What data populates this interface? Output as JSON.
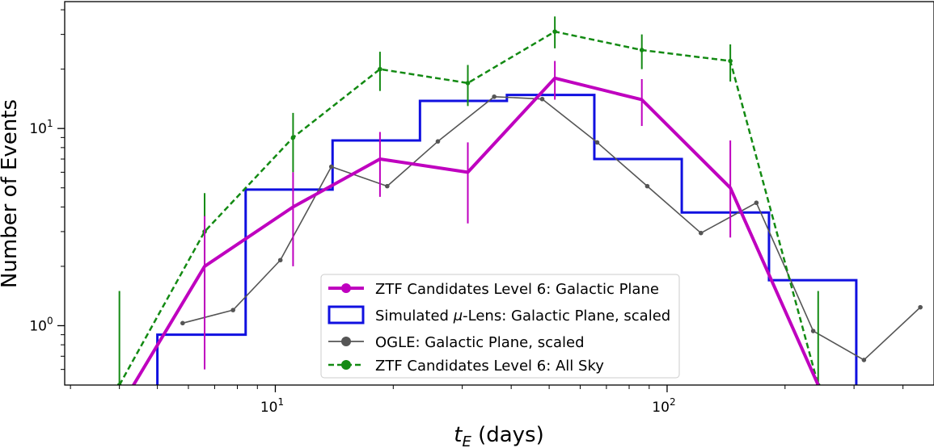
{
  "chart_data": {
    "type": "line",
    "xlabel": {
      "main": "t",
      "sub": "E",
      "rest": " (days)"
    },
    "ylabel": "Number of Events",
    "xscale": "log",
    "yscale": "log",
    "xlim": [
      2.9,
      480
    ],
    "ylim": [
      0.5,
      44
    ],
    "grid": false,
    "legend_position": "lower-center",
    "x_major_ticks": [
      {
        "value": 10,
        "base": "10",
        "exp": "1"
      },
      {
        "value": 100,
        "base": "10",
        "exp": "2"
      }
    ],
    "y_major_ticks": [
      {
        "value": 1,
        "base": "10",
        "exp": "0"
      },
      {
        "value": 10,
        "base": "10",
        "exp": "1"
      }
    ],
    "series": [
      {
        "name": "ZTF Candidates Level 6: Galactic Plane",
        "style": "line",
        "color": "#bf00bf",
        "x": [
          4.0,
          6.6,
          11.1,
          18.5,
          31.0,
          51.7,
          86.2,
          145.0,
          243.0
        ],
        "y": [
          0.38,
          2.0,
          4.0,
          7.0,
          6.0,
          18.0,
          14.0,
          5.0,
          0.5
        ],
        "err_low": [
          null,
          0.6,
          2.0,
          4.5,
          3.3,
          14.0,
          10.3,
          2.8,
          null
        ],
        "err_high": [
          null,
          3.6,
          6.0,
          9.6,
          8.5,
          22.0,
          17.8,
          8.7,
          null
        ]
      },
      {
        "name": "Simulated μ-Lens: Galactic Plane, scaled",
        "legend_prefix": "Simulated ",
        "legend_mu": "μ",
        "legend_suffix": "-Lens: Galactic Plane, scaled",
        "style": "step",
        "color": "#1010e0",
        "bin_edges": [
          5.0,
          8.4,
          14.0,
          23.4,
          39.0,
          65.2,
          109.0,
          182.0,
          304.0
        ],
        "values": [
          0.9,
          4.9,
          8.7,
          13.8,
          14.8,
          7.0,
          3.75,
          1.7
        ]
      },
      {
        "name": "OGLE: Galactic Plane, scaled",
        "style": "line",
        "color": "#555555",
        "x": [
          5.8,
          7.8,
          10.3,
          13.9,
          19.3,
          26.0,
          36.2,
          48.0,
          66.3,
          89.0,
          122.0,
          169.0,
          236.0,
          318.0,
          443.0
        ],
        "y": [
          1.03,
          1.2,
          2.15,
          6.4,
          5.1,
          8.6,
          14.5,
          14.1,
          8.5,
          5.1,
          2.95,
          4.2,
          0.94,
          0.67,
          1.24
        ]
      },
      {
        "name": "ZTF Candidates Level 6: All Sky",
        "style": "dashed",
        "color": "#138a13",
        "x": [
          4.0,
          6.6,
          11.1,
          18.5,
          31.0,
          51.7,
          86.2,
          145.0,
          243.0
        ],
        "y": [
          0.5,
          3.0,
          9.0,
          20.0,
          17.0,
          31.0,
          25.0,
          22.0,
          0.5
        ],
        "err_low": [
          null,
          1.2,
          6.0,
          15.5,
          13.0,
          25.5,
          20.0,
          17.3,
          null
        ],
        "err_high": [
          1.5,
          4.7,
          12.0,
          24.5,
          21.0,
          37.0,
          30.0,
          26.7,
          1.5
        ]
      }
    ]
  }
}
